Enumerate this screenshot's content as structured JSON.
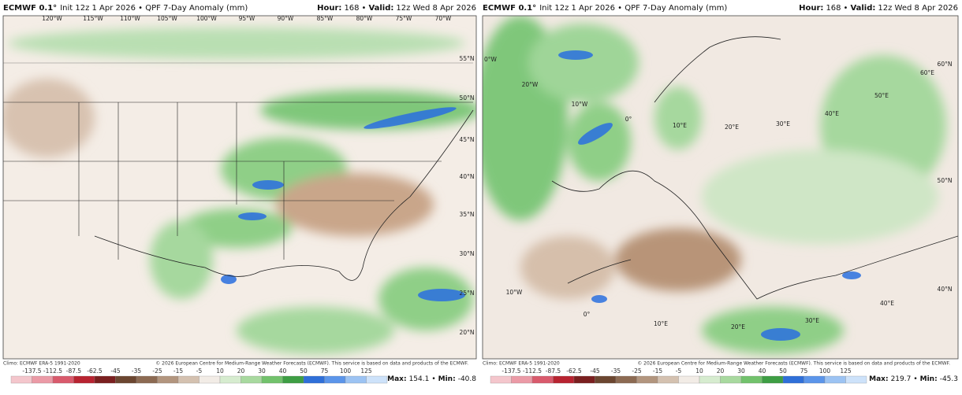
{
  "panels": [
    {
      "header": {
        "model": "ECMWF 0.1°",
        "product": "Init 12z 1 Apr 2026 • QPF 7-Day Anomaly (mm)",
        "hour_label": "Hour:",
        "hour": "168",
        "separator": "•",
        "valid_label": "Valid:",
        "valid": "12z Wed 8 Apr 2026"
      },
      "map_labels": [
        "120°W",
        "115°W",
        "110°W",
        "105°W",
        "100°W",
        "95°W",
        "90°W",
        "85°W",
        "80°W",
        "75°W",
        "70°W",
        "55°N",
        "50°N",
        "45°N",
        "40°N",
        "35°N",
        "30°N",
        "25°N",
        "20°N"
      ],
      "climo": "Climo: ECMWF ERA-5 1991-2020",
      "copyright": "© 2026 European Centre for Medium-Range Weather Forecasts (ECMWF). This service is based on data and products of the ECMWF.",
      "colorbar": [
        -137.5,
        -112.5,
        -87.5,
        -62.5,
        -45,
        -35,
        -25,
        -15,
        -5,
        10,
        20,
        30,
        40,
        50,
        75,
        100,
        125
      ],
      "max_label": "Max:",
      "max": "154.1",
      "separator": "•",
      "min_label": "Min:",
      "min": "-40.8"
    },
    {
      "header": {
        "model": "ECMWF 0.1°",
        "product": "Init 12z 1 Apr 2026 • QPF 7-Day Anomaly (mm)",
        "hour_label": "Hour:",
        "hour": "168",
        "separator": "•",
        "valid_label": "Valid:",
        "valid": "12z Wed 8 Apr 2026"
      },
      "map_labels": [
        "0°W",
        "20°W",
        "10°W",
        "0°",
        "10°E",
        "20°E",
        "30°E",
        "40°E",
        "50°E",
        "60°E",
        "60°N",
        "50°N",
        "40°N",
        "10°W",
        "0°",
        "10°E",
        "20°E",
        "30°E",
        "40°E"
      ],
      "climo": "Climo: ECMWF ERA-5 1991-2020",
      "copyright": "© 2026 European Centre for Medium-Range Weather Forecasts (ECMWF). This service is based on data and products of the ECMWF.",
      "colorbar": [
        -137.5,
        -112.5,
        -87.5,
        -62.5,
        -45,
        -35,
        -25,
        -15,
        -5,
        10,
        20,
        30,
        40,
        50,
        75,
        100,
        125
      ],
      "max_label": "Max:",
      "max": "219.7",
      "separator": "•",
      "min_label": "Min:",
      "min": "-45.3"
    }
  ]
}
